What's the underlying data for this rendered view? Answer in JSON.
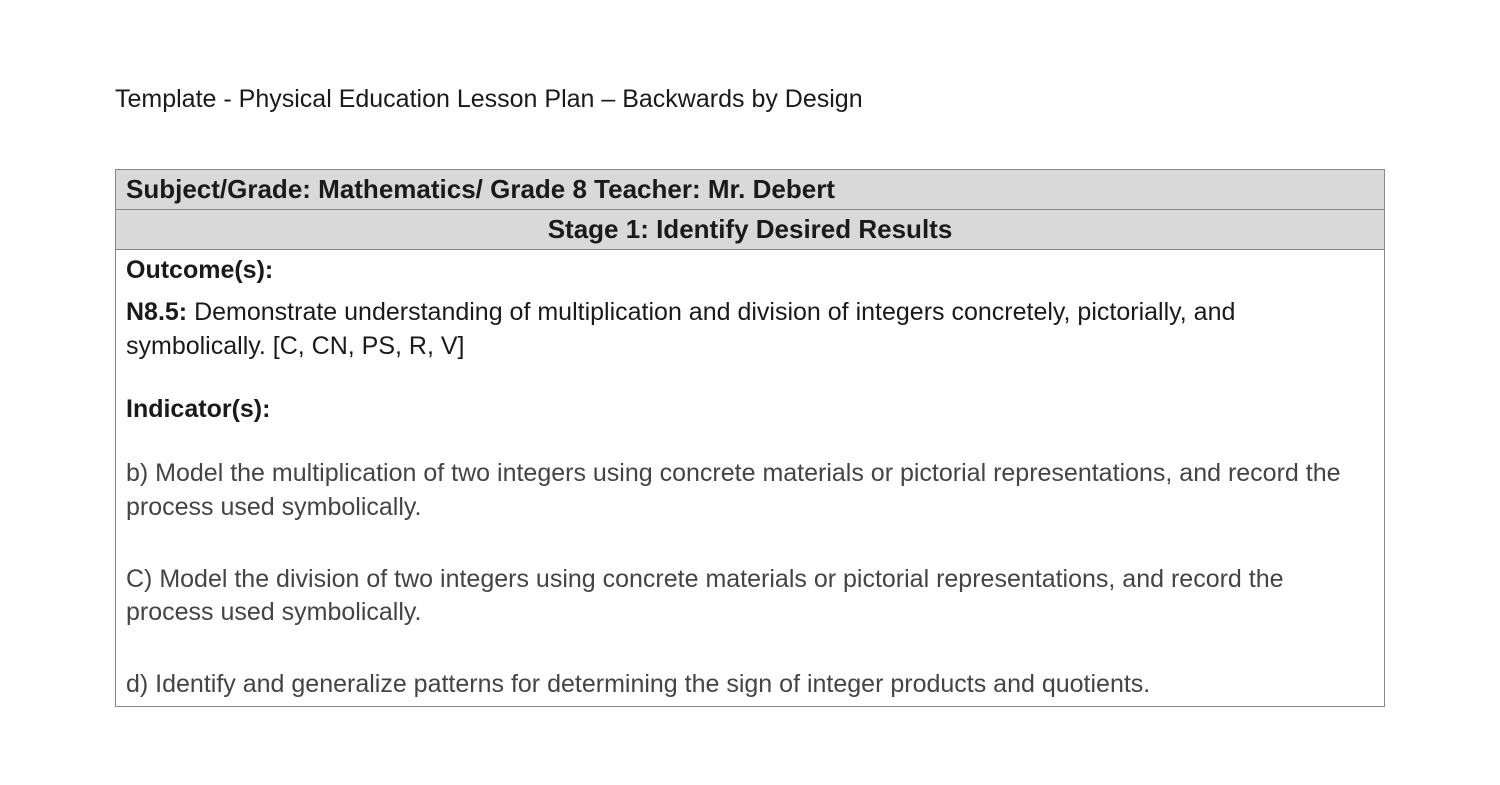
{
  "docTitle": "Template - Physical Education Lesson Plan – Backwards by Design",
  "header": "Subject/Grade: Mathematics/ Grade 8 Teacher: Mr. Debert",
  "stage": "Stage 1: Identify Desired Results",
  "outcomesLabel": "Outcome(s):",
  "outcomeCode": "N8.5:",
  "outcomeText": " Demonstrate understanding of multiplication and division of integers concretely, pictorially, and symbolically. [C, CN, PS, R, V]",
  "indicatorsLabel": "Indicator(s):",
  "indicatorB": "b) Model the multiplication of two integers using concrete materials or pictorial representations, and record the process used symbolically.",
  "indicatorC": "C) Model the division of two integers using concrete materials or pictorial representations, and record the process used symbolically.",
  "indicatorD": "d) Identify and generalize patterns for determining the sign of integer products and quotients.",
  "colors": {
    "pageBg": "#ffffff",
    "cellHeaderBg": "#d9d9d9",
    "border": "#888888",
    "text": "#1a1a1a",
    "indicatorText": "#444444"
  },
  "fontSizes": {
    "title": 25,
    "header": 26,
    "body": 25
  }
}
